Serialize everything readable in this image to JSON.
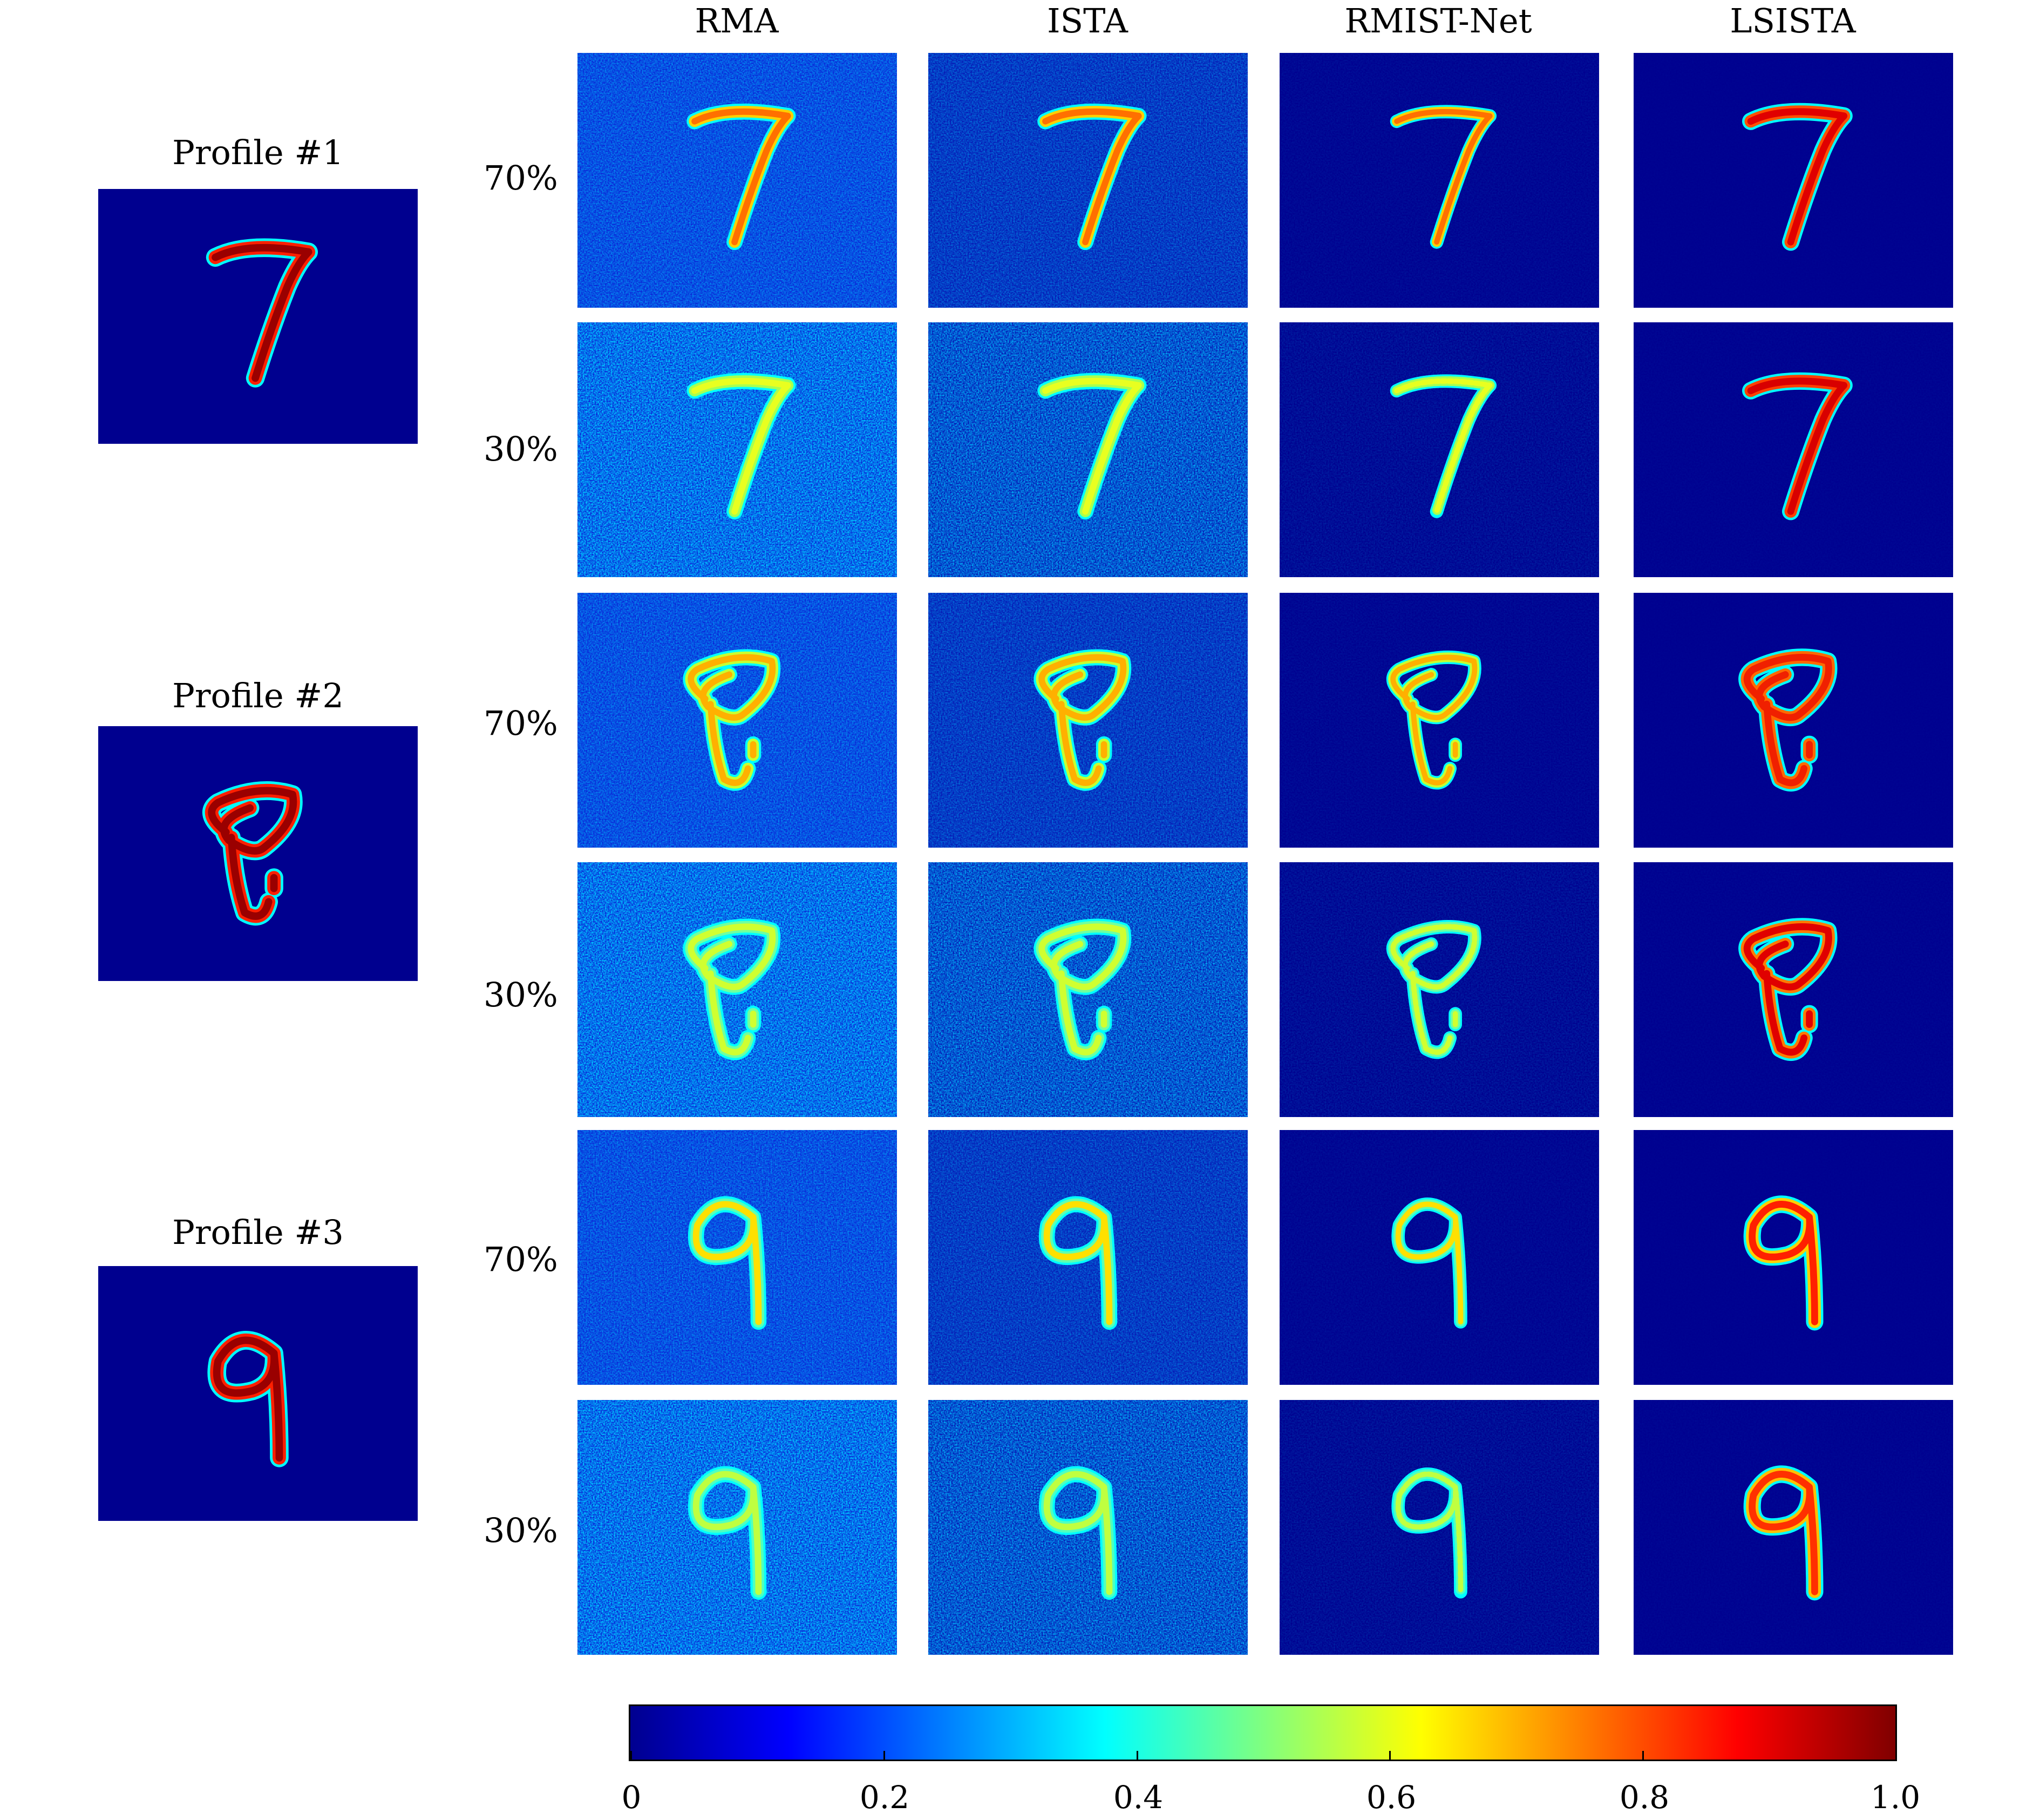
{
  "columns": [
    "RMA",
    "ISTA",
    "RMIST-Net",
    "LSISTA"
  ],
  "profiles": [
    {
      "title": "Profile #1",
      "digit": "7"
    },
    {
      "title": "Profile #2",
      "digit": "8"
    },
    {
      "title": "Profile #3",
      "digit": "9"
    }
  ],
  "rows": [
    {
      "label": "70%",
      "digit": "7"
    },
    {
      "label": "30%",
      "digit": "7"
    },
    {
      "label": "70%",
      "digit": "8"
    },
    {
      "label": "30%",
      "digit": "8"
    },
    {
      "label": "70%",
      "digit": "9"
    },
    {
      "label": "30%",
      "digit": "9"
    }
  ],
  "colorbar": {
    "min": 0,
    "max": 1.0,
    "ticks": [
      "0",
      "0.2",
      "0.4",
      "0.6",
      "0.8",
      "1.0"
    ],
    "colormap": "jet"
  },
  "colors": {
    "background_low": "#00008f",
    "mid": "#00ffff",
    "high": "#800000"
  }
}
